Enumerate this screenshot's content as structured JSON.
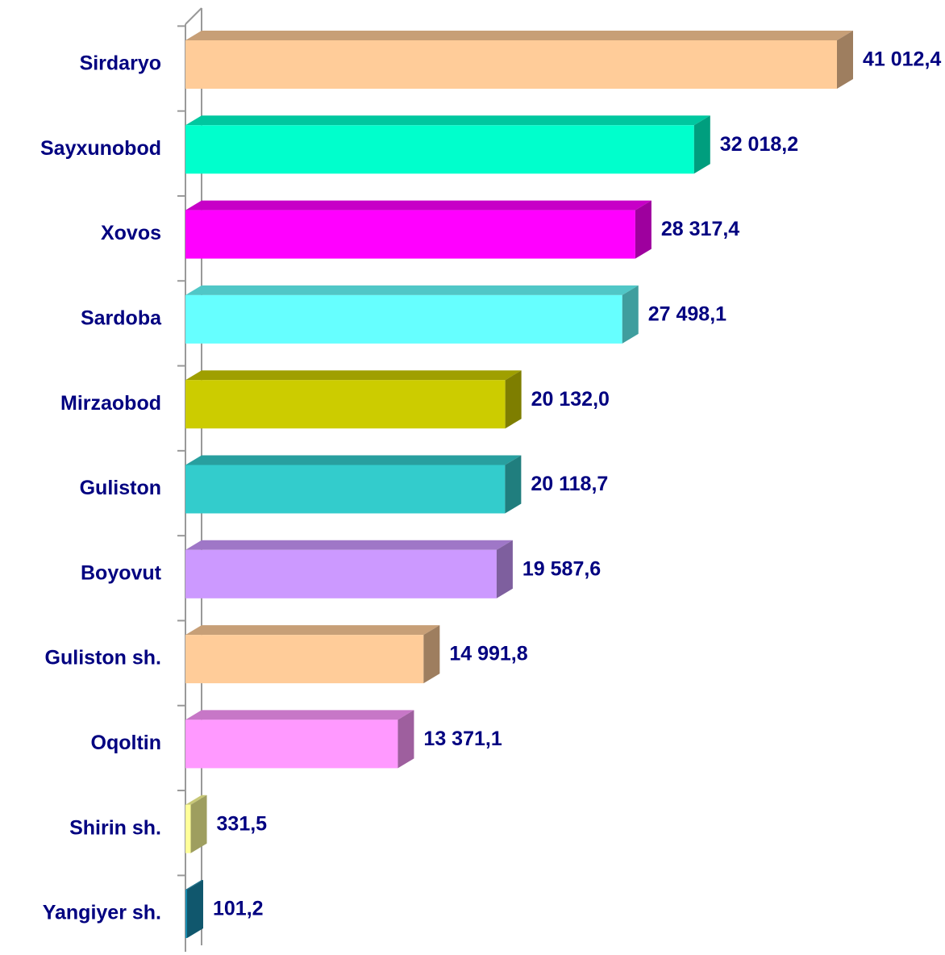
{
  "chart_data": {
    "type": "bar3d",
    "orientation": "horizontal",
    "categories": [
      "Sirdaryo",
      "Sayxunobod",
      "Xovos",
      "Sardoba",
      "Mirzaobod",
      "Guliston",
      "Boyovut",
      "Guliston sh.",
      "Oqoltin",
      "Shirin sh.",
      "Yangiyer sh."
    ],
    "values": [
      41012.4,
      32018.2,
      28317.4,
      27498.1,
      20132.0,
      20118.7,
      19587.6,
      14991.8,
      13371.1,
      331.5,
      101.2
    ],
    "value_labels": [
      "41 012,4",
      "32 018,2",
      "28 317,4",
      "27 498,1",
      "20 132,0",
      "20 118,7",
      "19 587,6",
      "14 991,8",
      "13 371,1",
      "331,5",
      "101,2"
    ],
    "colors": [
      "#ffcc99",
      "#00ffcc",
      "#ff00ff",
      "#66ffff",
      "#cccc00",
      "#33cccc",
      "#cc99ff",
      "#ffcc99",
      "#ff99ff",
      "#ffff99",
      "#1a8cb0"
    ]
  }
}
